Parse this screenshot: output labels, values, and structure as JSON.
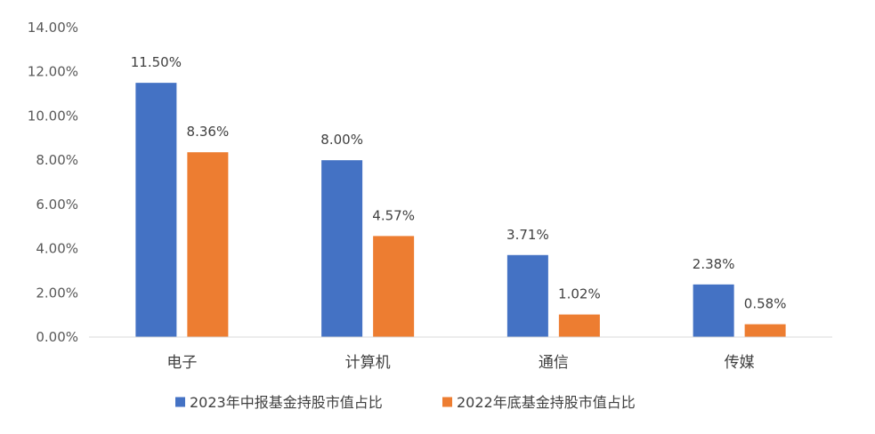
{
  "chart_data": {
    "type": "bar",
    "categories": [
      "电子",
      "计算机",
      "通信",
      "传媒"
    ],
    "series": [
      {
        "name": "2023年中报基金持股市值占比",
        "values": [
          11.5,
          8.0,
          3.71,
          2.38
        ],
        "labels": [
          "11.50%",
          "8.00%",
          "3.71%",
          "2.38%"
        ],
        "color": "#4472C4"
      },
      {
        "name": "2022年底基金持股市值占比",
        "values": [
          8.36,
          4.57,
          1.02,
          0.58
        ],
        "labels": [
          "8.36%",
          "4.57%",
          "1.02%",
          "0.58%"
        ],
        "color": "#ED7D31"
      }
    ],
    "yticks": [
      0,
      2,
      4,
      6,
      8,
      10,
      12,
      14
    ],
    "ytick_labels": [
      "0.00%",
      "2.00%",
      "4.00%",
      "6.00%",
      "8.00%",
      "10.00%",
      "12.00%",
      "14.00%"
    ],
    "ylim": [
      0,
      14
    ],
    "grid": false,
    "legend_position": "bottom",
    "axis_color": "#D9D9D9"
  }
}
